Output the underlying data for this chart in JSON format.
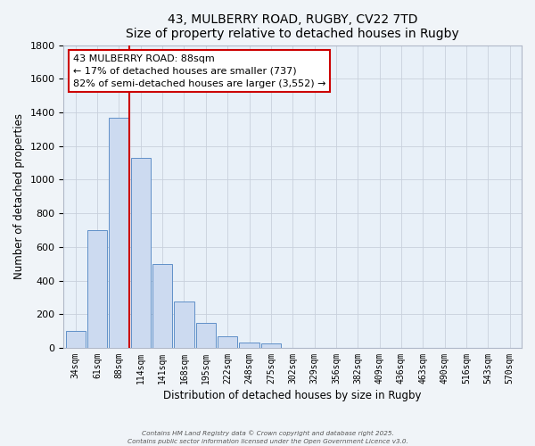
{
  "title": "43, MULBERRY ROAD, RUGBY, CV22 7TD",
  "subtitle": "Size of property relative to detached houses in Rugby",
  "xlabel": "Distribution of detached houses by size in Rugby",
  "ylabel": "Number of detached properties",
  "bar_labels": [
    "34sqm",
    "61sqm",
    "88sqm",
    "114sqm",
    "141sqm",
    "168sqm",
    "195sqm",
    "222sqm",
    "248sqm",
    "275sqm",
    "302sqm",
    "329sqm",
    "356sqm",
    "382sqm",
    "409sqm",
    "436sqm",
    "463sqm",
    "490sqm",
    "516sqm",
    "543sqm",
    "570sqm"
  ],
  "bar_values": [
    100,
    700,
    1370,
    1130,
    500,
    275,
    150,
    70,
    30,
    25,
    0,
    0,
    0,
    0,
    0,
    0,
    0,
    0,
    0,
    0,
    0
  ],
  "bar_color": "#ccdaf0",
  "bar_edge_color": "#6090c8",
  "annotation_line1": "43 MULBERRY ROAD: 88sqm",
  "annotation_line2": "← 17% of detached houses are smaller (737)",
  "annotation_line3": "82% of semi-detached houses are larger (3,552) →",
  "annotation_box_color": "#ffffff",
  "annotation_box_edge_color": "#cc0000",
  "vline_index": 2,
  "vline_color": "#cc0000",
  "ylim": [
    0,
    1800
  ],
  "yticks": [
    0,
    200,
    400,
    600,
    800,
    1000,
    1200,
    1400,
    1600,
    1800
  ],
  "plot_bg_color": "#e8f0f8",
  "background_color": "#f0f4f8",
  "grid_color": "#c8d0dc",
  "footer_line1": "Contains HM Land Registry data © Crown copyright and database right 2025.",
  "footer_line2": "Contains public sector information licensed under the Open Government Licence v3.0."
}
